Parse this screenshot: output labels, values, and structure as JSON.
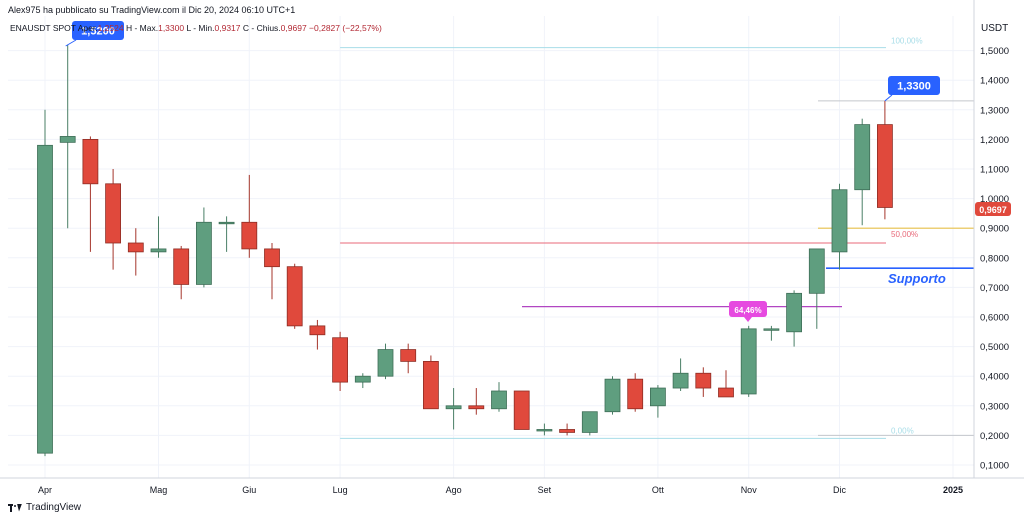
{
  "header": {
    "publisher": "Alex975 ha pubblicato su TradingView.com il Dic 20, 2024 06:10 UTC+1",
    "symbol": "ENAUSDT SPOT",
    "open_label": "Aper.",
    "open": "1,2524",
    "high_label": "H - Max.",
    "high": "1,3300",
    "low_label": "L - Min.",
    "low": "0,9317",
    "close_label": "C - Chius.",
    "close": "0,9697",
    "change": "−0,2827 (−22,57%)"
  },
  "footer": {
    "brand": "TradingView"
  },
  "colors": {
    "up": "#5f9e7f",
    "down": "#e0493c",
    "axis_text": "#131722"
  },
  "chart_data": {
    "type": "candlestick",
    "currency": "USDT",
    "ylim": [
      0.07,
      1.58
    ],
    "y_ticks": [
      "1,5000",
      "1,4000",
      "1,3000",
      "1,2000",
      "1,1000",
      "1,0000",
      "0,9000",
      "0,8000",
      "0,7000",
      "0,6000",
      "0,5000",
      "0,4000",
      "0,3000",
      "0,2000",
      "0,1000"
    ],
    "x_ticks": [
      {
        "label": "Apr",
        "index": 0
      },
      {
        "label": "Mag",
        "index": 5
      },
      {
        "label": "Giu",
        "index": 9
      },
      {
        "label": "Lug",
        "index": 13
      },
      {
        "label": "Ago",
        "index": 18
      },
      {
        "label": "Set",
        "index": 22
      },
      {
        "label": "Ott",
        "index": 27
      },
      {
        "label": "Nov",
        "index": 31
      },
      {
        "label": "Dic",
        "index": 35
      },
      {
        "label": "2025",
        "index": 40
      }
    ],
    "candles": [
      {
        "o": 0.14,
        "h": 1.3,
        "l": 0.13,
        "c": 1.18
      },
      {
        "o": 1.19,
        "h": 1.52,
        "l": 0.9,
        "c": 1.21
      },
      {
        "o": 1.2,
        "h": 1.21,
        "l": 0.82,
        "c": 1.05
      },
      {
        "o": 1.05,
        "h": 1.1,
        "l": 0.76,
        "c": 0.85
      },
      {
        "o": 0.85,
        "h": 0.9,
        "l": 0.74,
        "c": 0.82
      },
      {
        "o": 0.82,
        "h": 0.94,
        "l": 0.8,
        "c": 0.83
      },
      {
        "o": 0.83,
        "h": 0.84,
        "l": 0.66,
        "c": 0.71
      },
      {
        "o": 0.71,
        "h": 0.97,
        "l": 0.7,
        "c": 0.92
      },
      {
        "o": 0.92,
        "h": 0.94,
        "l": 0.82,
        "c": 0.92
      },
      {
        "o": 0.92,
        "h": 1.08,
        "l": 0.8,
        "c": 0.83
      },
      {
        "o": 0.83,
        "h": 0.85,
        "l": 0.66,
        "c": 0.77
      },
      {
        "o": 0.77,
        "h": 0.78,
        "l": 0.56,
        "c": 0.57
      },
      {
        "o": 0.57,
        "h": 0.59,
        "l": 0.49,
        "c": 0.54
      },
      {
        "o": 0.53,
        "h": 0.55,
        "l": 0.35,
        "c": 0.38
      },
      {
        "o": 0.38,
        "h": 0.41,
        "l": 0.36,
        "c": 0.4
      },
      {
        "o": 0.4,
        "h": 0.51,
        "l": 0.39,
        "c": 0.49
      },
      {
        "o": 0.49,
        "h": 0.51,
        "l": 0.41,
        "c": 0.45
      },
      {
        "o": 0.45,
        "h": 0.47,
        "l": 0.29,
        "c": 0.29
      },
      {
        "o": 0.29,
        "h": 0.36,
        "l": 0.22,
        "c": 0.3
      },
      {
        "o": 0.3,
        "h": 0.36,
        "l": 0.27,
        "c": 0.29
      },
      {
        "o": 0.29,
        "h": 0.38,
        "l": 0.28,
        "c": 0.35
      },
      {
        "o": 0.35,
        "h": 0.35,
        "l": 0.22,
        "c": 0.22
      },
      {
        "o": 0.22,
        "h": 0.24,
        "l": 0.2,
        "c": 0.22
      },
      {
        "o": 0.22,
        "h": 0.24,
        "l": 0.2,
        "c": 0.21
      },
      {
        "o": 0.21,
        "h": 0.27,
        "l": 0.2,
        "c": 0.28
      },
      {
        "o": 0.28,
        "h": 0.4,
        "l": 0.27,
        "c": 0.39
      },
      {
        "o": 0.39,
        "h": 0.41,
        "l": 0.28,
        "c": 0.29
      },
      {
        "o": 0.3,
        "h": 0.37,
        "l": 0.26,
        "c": 0.36
      },
      {
        "o": 0.36,
        "h": 0.46,
        "l": 0.35,
        "c": 0.41
      },
      {
        "o": 0.41,
        "h": 0.43,
        "l": 0.33,
        "c": 0.36
      },
      {
        "o": 0.36,
        "h": 0.42,
        "l": 0.33,
        "c": 0.33
      },
      {
        "o": 0.34,
        "h": 0.57,
        "l": 0.33,
        "c": 0.56
      },
      {
        "o": 0.56,
        "h": 0.57,
        "l": 0.52,
        "c": 0.56
      },
      {
        "o": 0.55,
        "h": 0.69,
        "l": 0.5,
        "c": 0.68
      },
      {
        "o": 0.68,
        "h": 0.83,
        "l": 0.56,
        "c": 0.83
      },
      {
        "o": 0.82,
        "h": 1.05,
        "l": 0.76,
        "c": 1.03
      },
      {
        "o": 1.03,
        "h": 1.27,
        "l": 0.91,
        "c": 1.25
      },
      {
        "o": 1.25,
        "h": 1.33,
        "l": 0.93,
        "c": 0.97
      }
    ],
    "annotations": {
      "level_top": {
        "label": "100,00%",
        "value": 1.51
      },
      "level_mid": {
        "label": "50,00%",
        "value": 0.85
      },
      "level_bottom": {
        "label": "0,00%",
        "value": 0.19
      },
      "purple_level": {
        "label": "64,46%",
        "value": 0.635
      },
      "gray_high_level": {
        "value": 1.33
      },
      "gray_low_level": {
        "value": 0.2
      },
      "yellow_level": {
        "value": 0.9
      },
      "support_level": {
        "label": "Supporto",
        "value": 0.765
      },
      "high_callout": {
        "label": "1,3300"
      },
      "ath_callout": {
        "label": "1,5200"
      },
      "last_price": {
        "label": "0,9697",
        "value": 0.9697
      }
    }
  }
}
